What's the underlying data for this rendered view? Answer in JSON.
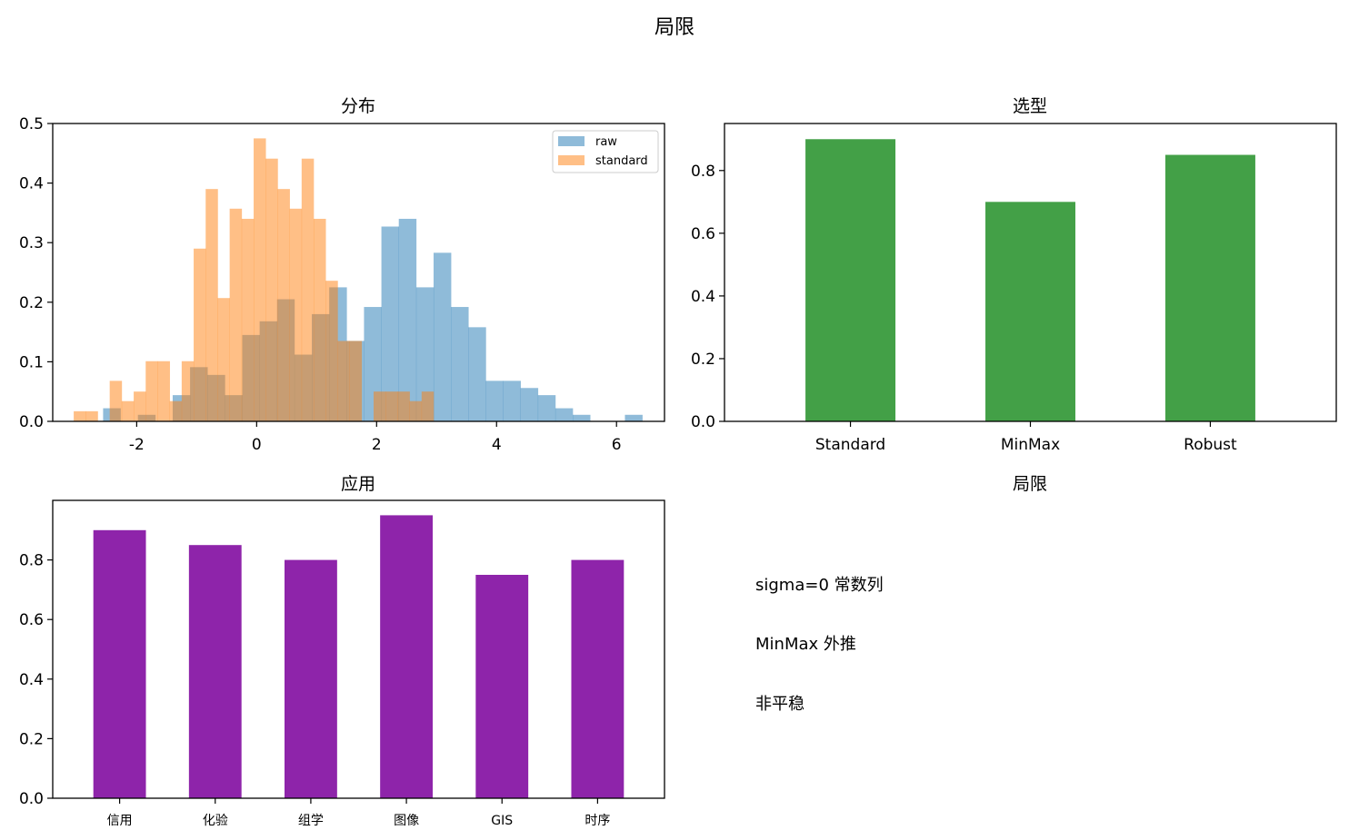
{
  "figure": {
    "suptitle": "局限"
  },
  "chart_data": [
    {
      "type": "histogram",
      "title": "分布",
      "xlim": [
        -3.4,
        6.8
      ],
      "ylim": [
        0,
        0.5
      ],
      "xticks": [
        -2,
        0,
        2,
        4,
        6
      ],
      "xtick_labels": [
        "-2",
        "0",
        "2",
        "4",
        "6"
      ],
      "yticks": [
        0,
        0.1,
        0.2,
        0.3,
        0.4,
        0.5
      ],
      "ytick_labels": [
        "0.0",
        "0.1",
        "0.2",
        "0.3",
        "0.4",
        "0.5"
      ],
      "legend_position": "upper right",
      "series": [
        {
          "name": "raw",
          "color": "#1f77b4",
          "alpha": 0.5,
          "bins": [
            {
              "x0": -2.56,
              "x1": -2.27,
              "y": 0.022
            },
            {
              "x0": -2.27,
              "x1": -1.98,
              "y": 0.0
            },
            {
              "x0": -1.98,
              "x1": -1.69,
              "y": 0.011
            },
            {
              "x0": -1.69,
              "x1": -1.4,
              "y": 0.0
            },
            {
              "x0": -1.4,
              "x1": -1.11,
              "y": 0.044
            },
            {
              "x0": -1.11,
              "x1": -0.82,
              "y": 0.091
            },
            {
              "x0": -0.82,
              "x1": -0.53,
              "y": 0.078
            },
            {
              "x0": -0.53,
              "x1": -0.24,
              "y": 0.044
            },
            {
              "x0": -0.24,
              "x1": 0.05,
              "y": 0.145
            },
            {
              "x0": 0.05,
              "x1": 0.34,
              "y": 0.168
            },
            {
              "x0": 0.34,
              "x1": 0.63,
              "y": 0.205
            },
            {
              "x0": 0.63,
              "x1": 0.92,
              "y": 0.112
            },
            {
              "x0": 0.92,
              "x1": 1.21,
              "y": 0.18
            },
            {
              "x0": 1.21,
              "x1": 1.5,
              "y": 0.225
            },
            {
              "x0": 1.5,
              "x1": 1.79,
              "y": 0.135
            },
            {
              "x0": 1.79,
              "x1": 2.08,
              "y": 0.192
            },
            {
              "x0": 2.08,
              "x1": 2.37,
              "y": 0.327
            },
            {
              "x0": 2.37,
              "x1": 2.66,
              "y": 0.34
            },
            {
              "x0": 2.66,
              "x1": 2.95,
              "y": 0.225
            },
            {
              "x0": 2.95,
              "x1": 3.24,
              "y": 0.283
            },
            {
              "x0": 3.24,
              "x1": 3.53,
              "y": 0.192
            },
            {
              "x0": 3.53,
              "x1": 3.82,
              "y": 0.158
            },
            {
              "x0": 3.82,
              "x1": 4.11,
              "y": 0.068
            },
            {
              "x0": 4.11,
              "x1": 4.4,
              "y": 0.068
            },
            {
              "x0": 4.4,
              "x1": 4.69,
              "y": 0.056
            },
            {
              "x0": 4.69,
              "x1": 4.98,
              "y": 0.044
            },
            {
              "x0": 4.98,
              "x1": 5.27,
              "y": 0.022
            },
            {
              "x0": 5.27,
              "x1": 5.56,
              "y": 0.011
            },
            {
              "x0": 5.56,
              "x1": 5.85,
              "y": 0.0
            },
            {
              "x0": 5.85,
              "x1": 6.14,
              "y": 0.0
            },
            {
              "x0": 6.14,
              "x1": 6.43,
              "y": 0.011
            }
          ]
        },
        {
          "name": "standard",
          "color": "#ff7f0e",
          "alpha": 0.5,
          "bins": [
            {
              "x0": -3.05,
              "x1": -2.85,
              "y": 0.017
            },
            {
              "x0": -2.85,
              "x1": -2.65,
              "y": 0.017
            },
            {
              "x0": -2.65,
              "x1": -2.45,
              "y": 0.0
            },
            {
              "x0": -2.45,
              "x1": -2.25,
              "y": 0.068
            },
            {
              "x0": -2.25,
              "x1": -2.05,
              "y": 0.034
            },
            {
              "x0": -2.05,
              "x1": -1.85,
              "y": 0.05
            },
            {
              "x0": -1.85,
              "x1": -1.65,
              "y": 0.101
            },
            {
              "x0": -1.65,
              "x1": -1.45,
              "y": 0.101
            },
            {
              "x0": -1.45,
              "x1": -1.25,
              "y": 0.034
            },
            {
              "x0": -1.25,
              "x1": -1.05,
              "y": 0.101
            },
            {
              "x0": -1.05,
              "x1": -0.85,
              "y": 0.29
            },
            {
              "x0": -0.85,
              "x1": -0.65,
              "y": 0.39
            },
            {
              "x0": -0.65,
              "x1": -0.45,
              "y": 0.207
            },
            {
              "x0": -0.45,
              "x1": -0.25,
              "y": 0.357
            },
            {
              "x0": -0.25,
              "x1": -0.05,
              "y": 0.34
            },
            {
              "x0": -0.05,
              "x1": 0.15,
              "y": 0.475
            },
            {
              "x0": 0.15,
              "x1": 0.35,
              "y": 0.441
            },
            {
              "x0": 0.35,
              "x1": 0.55,
              "y": 0.39
            },
            {
              "x0": 0.55,
              "x1": 0.75,
              "y": 0.357
            },
            {
              "x0": 0.75,
              "x1": 0.95,
              "y": 0.441
            },
            {
              "x0": 0.95,
              "x1": 1.15,
              "y": 0.34
            },
            {
              "x0": 1.15,
              "x1": 1.35,
              "y": 0.236
            },
            {
              "x0": 1.35,
              "x1": 1.55,
              "y": 0.135
            },
            {
              "x0": 1.55,
              "x1": 1.75,
              "y": 0.135
            },
            {
              "x0": 1.75,
              "x1": 1.95,
              "y": 0.0
            },
            {
              "x0": 1.95,
              "x1": 2.15,
              "y": 0.05
            },
            {
              "x0": 2.15,
              "x1": 2.35,
              "y": 0.05
            },
            {
              "x0": 2.35,
              "x1": 2.55,
              "y": 0.05
            },
            {
              "x0": 2.55,
              "x1": 2.75,
              "y": 0.034
            },
            {
              "x0": 2.75,
              "x1": 2.95,
              "y": 0.05
            }
          ]
        }
      ]
    },
    {
      "type": "bar",
      "title": "选型",
      "categories": [
        "Standard",
        "MinMax",
        "Robust"
      ],
      "values": [
        0.9,
        0.7,
        0.85
      ],
      "color": "#43a047",
      "ylim": [
        0,
        0.95
      ],
      "yticks": [
        0,
        0.2,
        0.4,
        0.6,
        0.8
      ],
      "ytick_labels": [
        "0.0",
        "0.2",
        "0.4",
        "0.6",
        "0.8"
      ]
    },
    {
      "type": "bar",
      "title": "应用",
      "categories": [
        "信用",
        "化验",
        "组学",
        "图像",
        "GIS",
        "时序"
      ],
      "values": [
        0.9,
        0.85,
        0.8,
        0.95,
        0.75,
        0.8
      ],
      "color": "#8e24aa",
      "ylim": [
        0,
        1.0
      ],
      "yticks": [
        0,
        0.2,
        0.4,
        0.6,
        0.8
      ],
      "ytick_labels": [
        "0.0",
        "0.2",
        "0.4",
        "0.6",
        "0.8"
      ]
    }
  ],
  "notes_panel": {
    "title": "局限",
    "lines": [
      "sigma=0 常数列",
      "MinMax 外推",
      "非平稳"
    ]
  }
}
